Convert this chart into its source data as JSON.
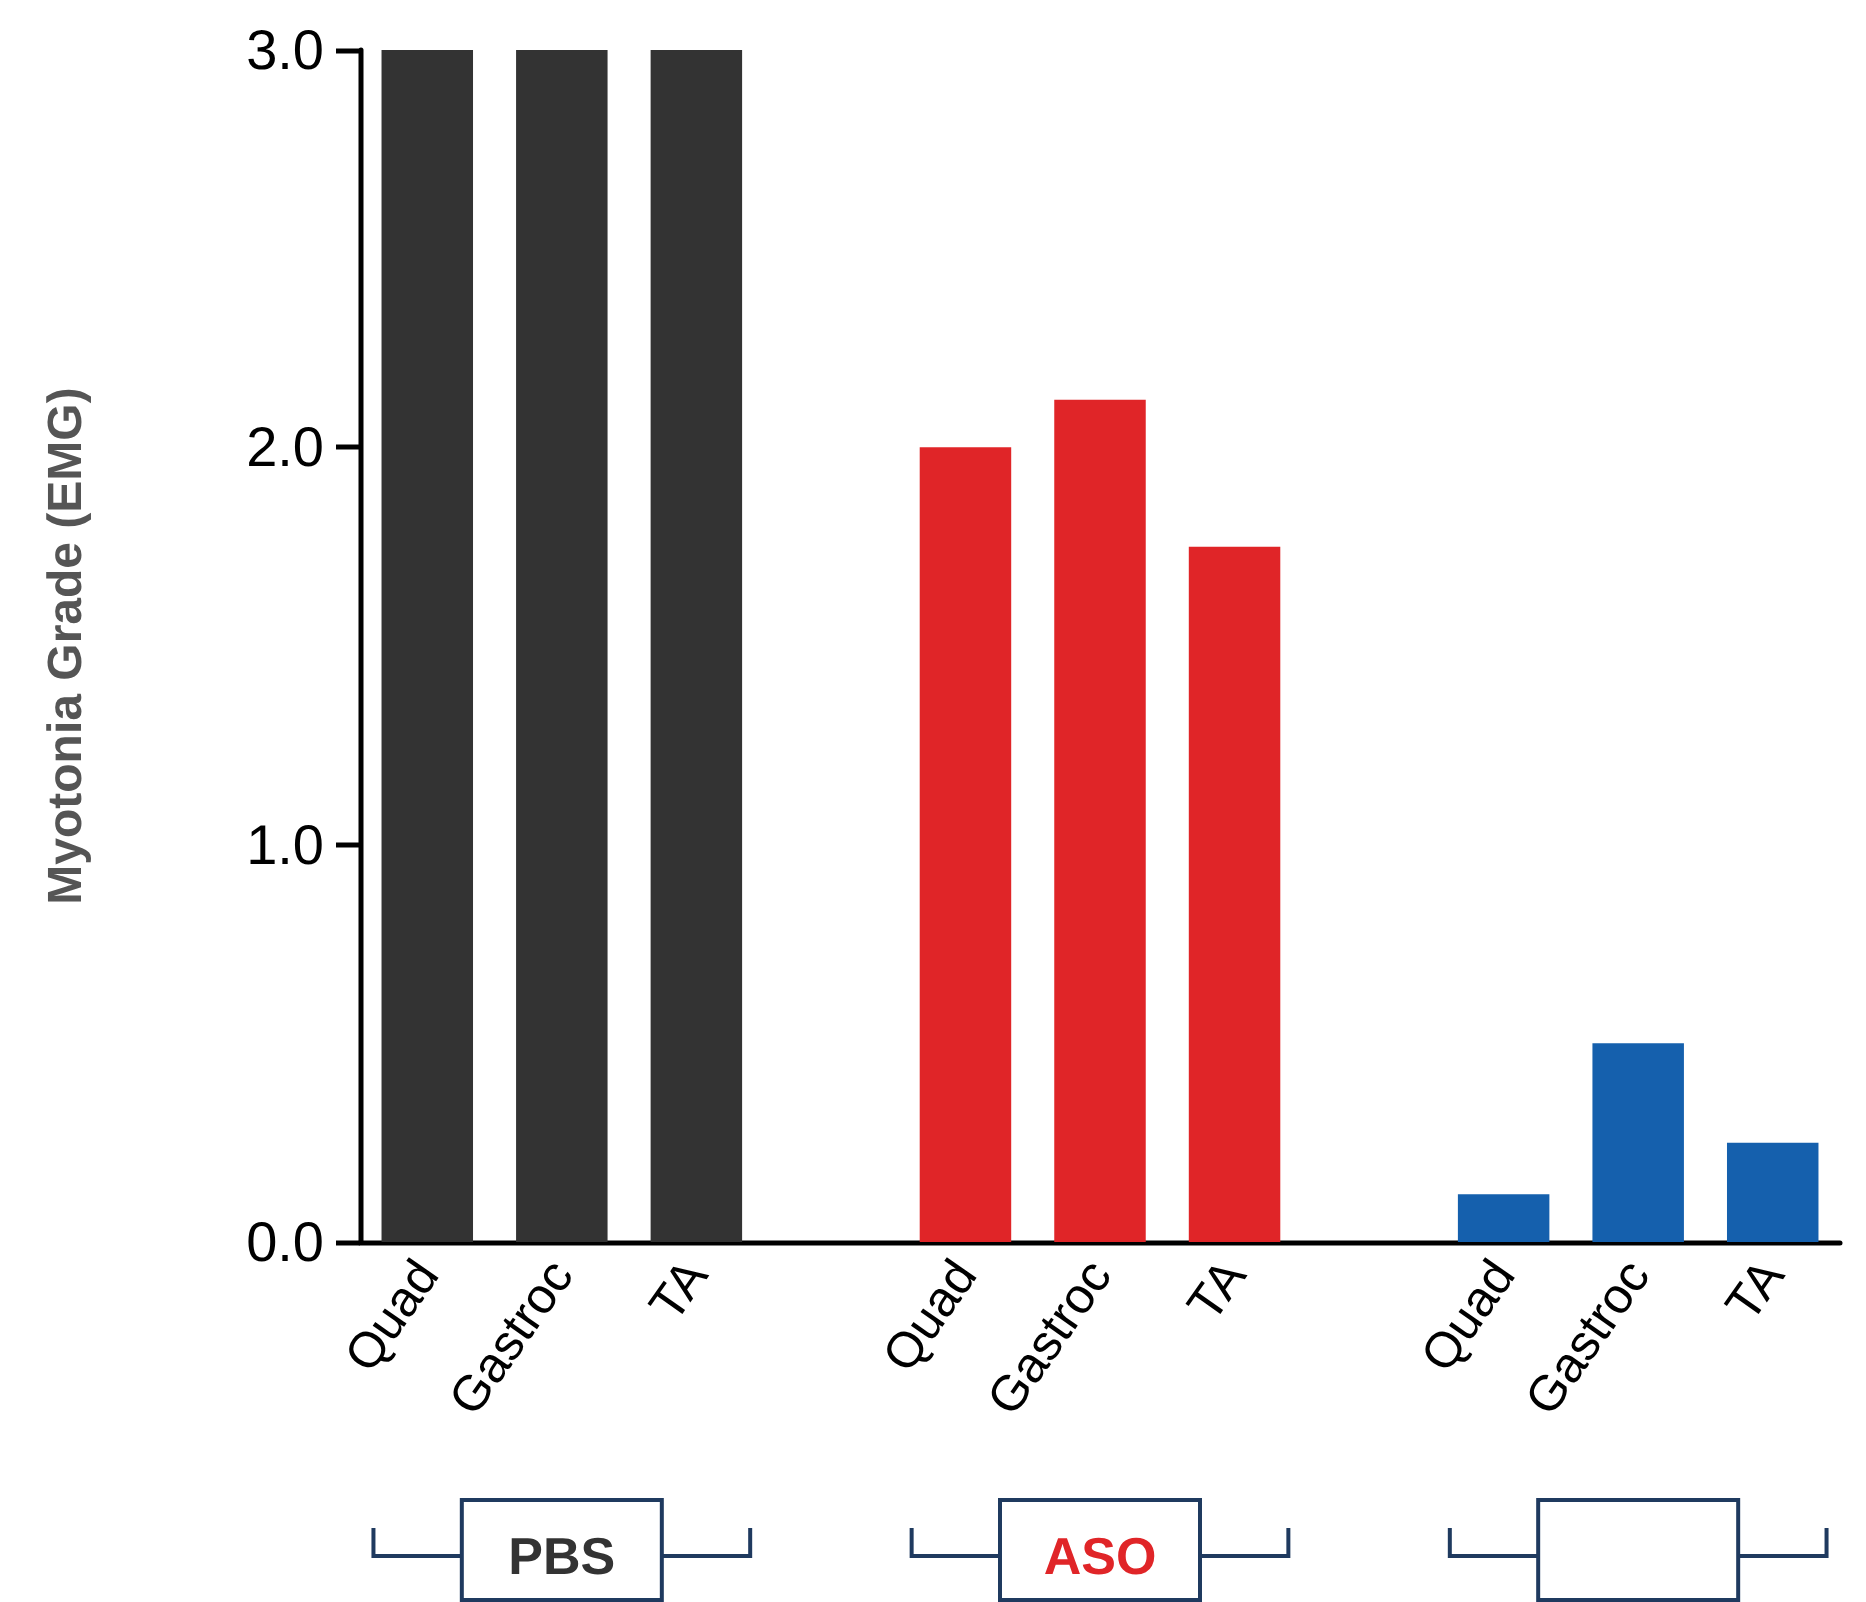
{
  "chart_data": {
    "type": "bar",
    "ylabel": "Myotonia Grade (EMG)",
    "categories": [
      "Quad",
      "Gastroc",
      "TA",
      null,
      "Quad",
      "Gastroc",
      "TA",
      null,
      "Quad",
      "Gastroc",
      "TA"
    ],
    "values": [
      3,
      3,
      3,
      null,
      2.0,
      2.12,
      1.75,
      null,
      0.12,
      0.5,
      0.25
    ],
    "colors": [
      "#333333",
      "#333333",
      "#333333",
      null,
      "#e02528",
      "#e02528",
      "#e02528",
      null,
      "#1560ad",
      "#1560ad",
      "#1560ad"
    ],
    "ylim": [
      0,
      3
    ],
    "yticks": [
      {
        "value": 0,
        "label": "0.0"
      },
      {
        "value": 1,
        "label": "1.0"
      },
      {
        "value": 2,
        "label": "2.0"
      },
      {
        "value": 3,
        "label": "3.0"
      }
    ],
    "grid": false,
    "annotations": [
      "PBS",
      "ASO"
    ]
  }
}
